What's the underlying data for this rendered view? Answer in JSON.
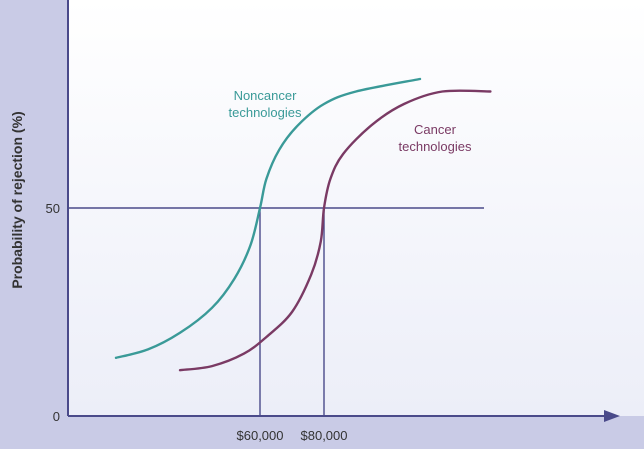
{
  "chart_data": {
    "type": "line",
    "title": "",
    "xlabel": "",
    "ylabel": "Probability of rejection (%)",
    "ylim": [
      0,
      100
    ],
    "y_ticks": [
      {
        "value": 0,
        "label": "0"
      },
      {
        "value": 50,
        "label": "50"
      }
    ],
    "x_ticks": [
      {
        "value": 60000,
        "label": "$60,000"
      },
      {
        "value": 80000,
        "label": "$80,000"
      }
    ],
    "x_range": [
      0,
      180000
    ],
    "reference_line": {
      "y": 50,
      "x_end": 130000
    },
    "drop_lines": [
      60000,
      80000
    ],
    "grid": false,
    "series": [
      {
        "name": "Noncancer technologies",
        "label_lines": [
          "Noncancer",
          "technologies"
        ],
        "color": "#3a9a98",
        "points": [
          [
            15000,
            14
          ],
          [
            25000,
            16
          ],
          [
            35000,
            20
          ],
          [
            45000,
            26
          ],
          [
            52000,
            33
          ],
          [
            57000,
            41
          ],
          [
            60000,
            50
          ],
          [
            62000,
            57
          ],
          [
            66000,
            64
          ],
          [
            72000,
            70
          ],
          [
            80000,
            75
          ],
          [
            90000,
            78
          ],
          [
            110000,
            81
          ]
        ]
      },
      {
        "name": "Cancer technologies",
        "label_lines": [
          "Cancer",
          "technologies"
        ],
        "color": "#7a3a64",
        "points": [
          [
            35000,
            11
          ],
          [
            45000,
            12
          ],
          [
            55000,
            15
          ],
          [
            62000,
            19
          ],
          [
            70000,
            25
          ],
          [
            76000,
            34
          ],
          [
            79000,
            42
          ],
          [
            80000,
            50
          ],
          [
            82000,
            57
          ],
          [
            86000,
            63
          ],
          [
            95000,
            70
          ],
          [
            105000,
            75
          ],
          [
            117000,
            78
          ],
          [
            132000,
            78
          ]
        ]
      }
    ]
  },
  "colors": {
    "background": "#c9cbe6",
    "plot_area_top": "#ffffff",
    "plot_area_bottom": "#eceef8",
    "axis": "#4a4a8a",
    "reference": "#4a4a8a"
  }
}
